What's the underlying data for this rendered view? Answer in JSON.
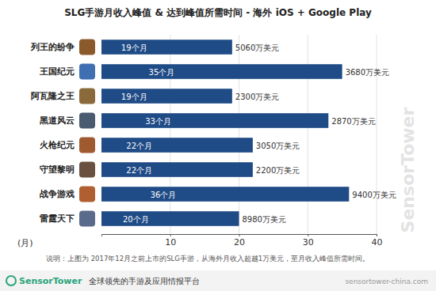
{
  "chart_data": {
    "type": "bar",
    "title": "SLG手游月收入峰值 & 达到峰值所需时间 - 海外 iOS + Google Play",
    "orientation": "horizontal",
    "categories": [
      "列王的纷争",
      "王国纪元",
      "阿瓦隆之王",
      "黑道风云",
      "火枪纪元",
      "守望黎明",
      "战争游戏",
      "雷霆天下"
    ],
    "values": [
      19,
      35,
      19,
      33,
      22,
      22,
      36,
      20
    ],
    "value_labels": [
      "19个月",
      "35个月",
      "19个月",
      "33个月",
      "22个月",
      "22个月",
      "36个月",
      "20个月"
    ],
    "data_labels": true,
    "peak_revenue_labels": [
      "5060万美元",
      "3680万美元",
      "2300万美元",
      "2870万美元",
      "3050万美元",
      "2200万美元",
      "9400万美元",
      "8980万美元"
    ],
    "color": "#1f4b86",
    "xlim": [
      0,
      40
    ],
    "xticks": [
      10,
      20,
      30,
      40
    ],
    "xlabel": "(月)",
    "grid": true,
    "note": "说明：上图为 2017年12月之前上市的SLG手游，从海外月收入超越1万美元，至月收入峰值所需时间。",
    "watermark": "SensorTower",
    "footer": [
      "SensorTower",
      "全球领先的手游及应用情报平台"
    ],
    "footer_url": "sensortower-china.com"
  }
}
